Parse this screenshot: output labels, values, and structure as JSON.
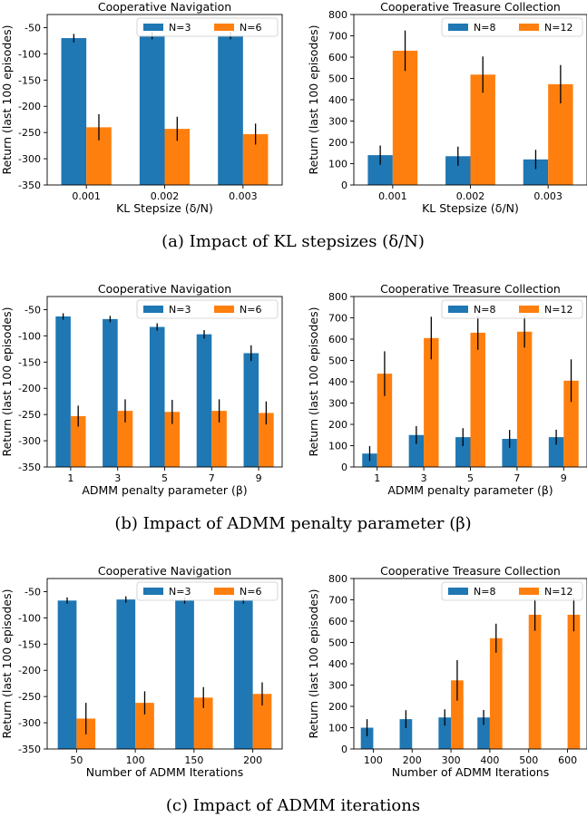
{
  "colors": {
    "blue": "#1f77b4",
    "orange": "#ff7f0e",
    "err": "#000000"
  },
  "captions": [
    "(a) Impact of KL stepsizes (δ/N)",
    "(b) Impact of ADMM penalty parameter (β)",
    "(c) Impact of ADMM iterations"
  ],
  "chart_data": [
    {
      "type": "bar",
      "title": "Cooperative Navigation",
      "xlabel": "KL Stepsize (δ/N)",
      "ylabel": "Return (last 100 episodes)",
      "categories": [
        "0.001",
        "0.002",
        "0.003"
      ],
      "ylim": [
        -350,
        -25
      ],
      "yticks": [
        -350,
        -300,
        -250,
        -200,
        -150,
        -100,
        -50
      ],
      "legend": "top-right",
      "series": [
        {
          "name": "N=3",
          "values": [
            -70,
            -65,
            -65
          ],
          "err": [
            8,
            7,
            7
          ]
        },
        {
          "name": "N=6",
          "values": [
            -240,
            -243,
            -253
          ],
          "err": [
            25,
            23,
            20
          ]
        }
      ]
    },
    {
      "type": "bar",
      "title": "Cooperative Treasure Collection",
      "xlabel": "KL Stepsize (δ/N)",
      "ylabel": "Return (last 100 episodes)",
      "categories": [
        "0.001",
        "0.002",
        "0.003"
      ],
      "ylim": [
        0,
        800
      ],
      "yticks": [
        0,
        100,
        200,
        300,
        400,
        500,
        600,
        700,
        800
      ],
      "legend": "top-right",
      "series": [
        {
          "name": "N=8",
          "values": [
            140,
            135,
            120
          ],
          "err": [
            45,
            45,
            45
          ]
        },
        {
          "name": "N=12",
          "values": [
            630,
            518,
            473
          ],
          "err": [
            95,
            85,
            90
          ]
        }
      ]
    },
    {
      "type": "bar",
      "title": "Cooperative Navigation",
      "xlabel": "ADMM penalty parameter (β)",
      "ylabel": "Return (last 100 episodes)",
      "categories": [
        "1",
        "3",
        "5",
        "7",
        "9"
      ],
      "ylim": [
        -350,
        -25
      ],
      "yticks": [
        -350,
        -300,
        -250,
        -200,
        -150,
        -100,
        -50
      ],
      "legend": "top-right",
      "series": [
        {
          "name": "N=3",
          "values": [
            -63,
            -68,
            -83,
            -97,
            -133
          ],
          "err": [
            6,
            6,
            7,
            8,
            15
          ]
        },
        {
          "name": "N=6",
          "values": [
            -253,
            -243,
            -245,
            -243,
            -247
          ],
          "err": [
            20,
            22,
            23,
            22,
            22
          ]
        }
      ]
    },
    {
      "type": "bar",
      "title": "Cooperative Treasure Collection",
      "xlabel": "ADMM penalty parameter (β)",
      "ylabel": "Return (last 100 episodes)",
      "categories": [
        "1",
        "3",
        "5",
        "7",
        "9"
      ],
      "ylim": [
        0,
        800
      ],
      "yticks": [
        0,
        100,
        200,
        300,
        400,
        500,
        600,
        700,
        800
      ],
      "legend": "top-right",
      "series": [
        {
          "name": "N=8",
          "values": [
            63,
            150,
            140,
            132,
            140
          ],
          "err": [
            35,
            42,
            42,
            42,
            35
          ]
        },
        {
          "name": "N=12",
          "values": [
            438,
            605,
            630,
            635,
            405
          ],
          "err": [
            105,
            100,
            80,
            75,
            100
          ]
        }
      ]
    },
    {
      "type": "bar",
      "title": "Cooperative Navigation",
      "xlabel": "Number of ADMM Iterations",
      "ylabel": "Return (last 100 episodes)",
      "categories": [
        "50",
        "100",
        "150",
        "200"
      ],
      "ylim": [
        -350,
        -25
      ],
      "yticks": [
        -350,
        -300,
        -250,
        -200,
        -150,
        -100,
        -50
      ],
      "legend": "top-right",
      "series": [
        {
          "name": "N=3",
          "values": [
            -67,
            -65,
            -67,
            -67
          ],
          "err": [
            6,
            6,
            6,
            6
          ]
        },
        {
          "name": "N=6",
          "values": [
            -292,
            -262,
            -252,
            -245
          ],
          "err": [
            30,
            22,
            20,
            22
          ]
        }
      ]
    },
    {
      "type": "bar",
      "title": "Cooperative Treasure Collection",
      "xlabel": "Number of ADMM Iterations",
      "ylabel": "Return (last 100 episodes)",
      "categories": [
        "100",
        "200",
        "300",
        "400",
        "500",
        "600"
      ],
      "ylim": [
        0,
        800
      ],
      "yticks": [
        0,
        100,
        200,
        300,
        400,
        500,
        600,
        700,
        800
      ],
      "legend": "top-right",
      "series": [
        {
          "name": "N=8",
          "values": [
            100,
            140,
            148,
            148,
            0,
            0
          ],
          "err": [
            40,
            42,
            38,
            35,
            0,
            0
          ]
        },
        {
          "name": "N=12",
          "values": [
            0,
            0,
            322,
            520,
            630,
            630
          ],
          "err": [
            0,
            0,
            95,
            68,
            75,
            78
          ]
        }
      ]
    }
  ]
}
